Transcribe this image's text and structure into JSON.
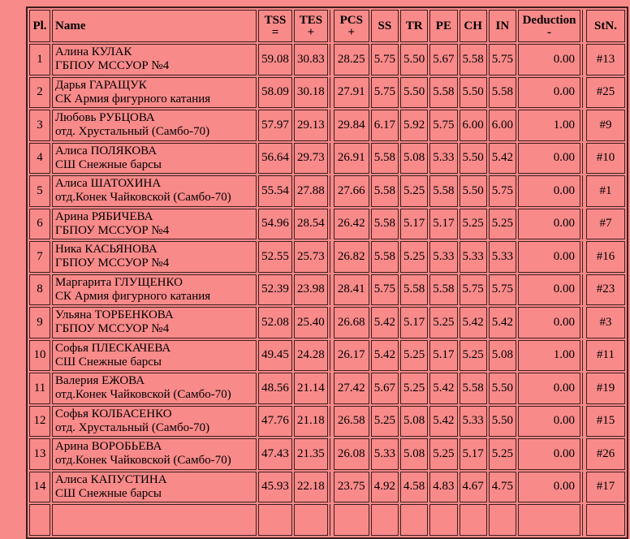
{
  "page": {
    "background_color": "#f98a8a",
    "border_color": "#3e1d1d",
    "text_color": "#000000"
  },
  "table": {
    "headers": {
      "pl": "Pl.",
      "name": "Name",
      "tss": "TSS",
      "tss_sub": "=",
      "tes": "TES",
      "tes_sub": "+",
      "pcs": "PCS",
      "pcs_sub": "+",
      "ss": "SS",
      "tr": "TR",
      "pe": "PE",
      "ch": "CH",
      "in": "IN",
      "deduction": "Deduction",
      "deduction_sub": "-",
      "stn": "StN."
    },
    "rows": [
      {
        "pl": "1",
        "name": "Алина КУЛАК",
        "club": "ГБПОУ МССУОР №4",
        "tss": "59.08",
        "tes": "30.83",
        "pcs": "28.25",
        "ss": "5.75",
        "tr": "5.50",
        "pe": "5.67",
        "ch": "5.58",
        "in": "5.75",
        "deduction": "0.00",
        "stn": "#13"
      },
      {
        "pl": "2",
        "name": "Дарья ГАРАЩУК",
        "club": "СК Армия фигурного катания",
        "tss": "58.09",
        "tes": "30.18",
        "pcs": "27.91",
        "ss": "5.75",
        "tr": "5.50",
        "pe": "5.58",
        "ch": "5.50",
        "in": "5.58",
        "deduction": "0.00",
        "stn": "#25"
      },
      {
        "pl": "3",
        "name": "Любовь РУБЦОВА",
        "club": "отд. Хрустальный (Самбо-70)",
        "tss": "57.97",
        "tes": "29.13",
        "pcs": "29.84",
        "ss": "6.17",
        "tr": "5.92",
        "pe": "5.75",
        "ch": "6.00",
        "in": "6.00",
        "deduction": "1.00",
        "stn": "#9"
      },
      {
        "pl": "4",
        "name": "Алиса ПОЛЯКОВА",
        "club": "СШ Снежные барсы",
        "tss": "56.64",
        "tes": "29.73",
        "pcs": "26.91",
        "ss": "5.58",
        "tr": "5.08",
        "pe": "5.33",
        "ch": "5.50",
        "in": "5.42",
        "deduction": "0.00",
        "stn": "#10"
      },
      {
        "pl": "5",
        "name": "Алиса ШАТОХИНА",
        "club": "отд.Конек Чайковской (Самбо-70)",
        "tss": "55.54",
        "tes": "27.88",
        "pcs": "27.66",
        "ss": "5.58",
        "tr": "5.25",
        "pe": "5.58",
        "ch": "5.50",
        "in": "5.75",
        "deduction": "0.00",
        "stn": "#1"
      },
      {
        "pl": "6",
        "name": "Арина РЯБИЧЕВА",
        "club": "ГБПОУ МССУОР №4",
        "tss": "54.96",
        "tes": "28.54",
        "pcs": "26.42",
        "ss": "5.58",
        "tr": "5.17",
        "pe": "5.17",
        "ch": "5.25",
        "in": "5.25",
        "deduction": "0.00",
        "stn": "#7"
      },
      {
        "pl": "7",
        "name": "Ника КАСЬЯНОВА",
        "club": "ГБПОУ МССУОР №4",
        "tss": "52.55",
        "tes": "25.73",
        "pcs": "26.82",
        "ss": "5.58",
        "tr": "5.25",
        "pe": "5.33",
        "ch": "5.33",
        "in": "5.33",
        "deduction": "0.00",
        "stn": "#16"
      },
      {
        "pl": "8",
        "name": "Маргарита ГЛУЩЕНКО",
        "club": "СК Армия фигурного катания",
        "tss": "52.39",
        "tes": "23.98",
        "pcs": "28.41",
        "ss": "5.75",
        "tr": "5.58",
        "pe": "5.58",
        "ch": "5.75",
        "in": "5.75",
        "deduction": "0.00",
        "stn": "#23"
      },
      {
        "pl": "9",
        "name": "Ульяна ТОРБЕНКОВА",
        "club": "ГБПОУ МССУОР №4",
        "tss": "52.08",
        "tes": "25.40",
        "pcs": "26.68",
        "ss": "5.42",
        "tr": "5.17",
        "pe": "5.25",
        "ch": "5.42",
        "in": "5.42",
        "deduction": "0.00",
        "stn": "#3"
      },
      {
        "pl": "10",
        "name": "Софья ПЛЕСКАЧЕВА",
        "club": "СШ Снежные барсы",
        "tss": "49.45",
        "tes": "24.28",
        "pcs": "26.17",
        "ss": "5.42",
        "tr": "5.25",
        "pe": "5.17",
        "ch": "5.25",
        "in": "5.08",
        "deduction": "1.00",
        "stn": "#11"
      },
      {
        "pl": "11",
        "name": "Валерия ЕЖОВА",
        "club": "отд.Конек Чайковской (Самбо-70)",
        "tss": "48.56",
        "tes": "21.14",
        "pcs": "27.42",
        "ss": "5.67",
        "tr": "5.25",
        "pe": "5.42",
        "ch": "5.58",
        "in": "5.50",
        "deduction": "0.00",
        "stn": "#19"
      },
      {
        "pl": "12",
        "name": "Софья КОЛБАСЕНКО",
        "club": "отд. Хрустальный (Самбо-70)",
        "tss": "47.76",
        "tes": "21.18",
        "pcs": "26.58",
        "ss": "5.25",
        "tr": "5.08",
        "pe": "5.42",
        "ch": "5.33",
        "in": "5.50",
        "deduction": "0.00",
        "stn": "#15"
      },
      {
        "pl": "13",
        "name": "Арина ВОРОБЬЕВА",
        "club": "отд.Конек Чайковской (Самбо-70)",
        "tss": "47.43",
        "tes": "21.35",
        "pcs": "26.08",
        "ss": "5.33",
        "tr": "5.08",
        "pe": "5.25",
        "ch": "5.17",
        "in": "5.25",
        "deduction": "0.00",
        "stn": "#26"
      },
      {
        "pl": "14",
        "name": "Алиса КАПУСТИНА",
        "club": "СШ Снежные барсы",
        "tss": "45.93",
        "tes": "22.18",
        "pcs": "23.75",
        "ss": "4.92",
        "tr": "4.58",
        "pe": "4.83",
        "ch": "4.67",
        "in": "4.75",
        "deduction": "0.00",
        "stn": "#17"
      }
    ]
  }
}
